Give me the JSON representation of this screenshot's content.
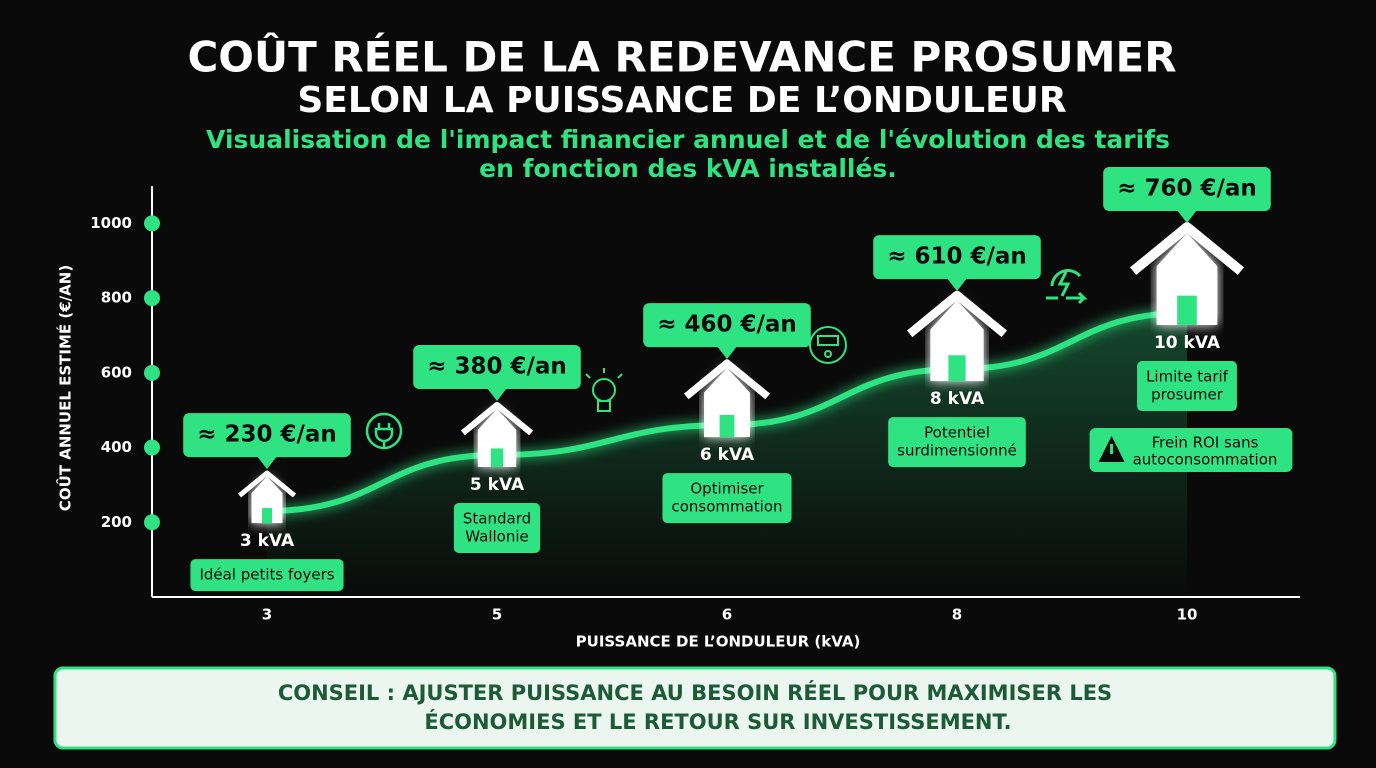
{
  "chart_data": {
    "type": "line",
    "title_lines": [
      "COÛT RÉEL DE LA REDEVANCE PROSUMER",
      "SELON LA PUISSANCE DE L’ONDULEUR"
    ],
    "subtitle_lines": [
      "Visualisation de l'impact  financier annuel et de l'évolution des tarifs",
      "en fonction des kVA installés."
    ],
    "y_label": "COÛT ANNUEL ESTIMÉ (€/AN)",
    "x_label": "PUISSANCE DE L’ONDULEUR (kVA)",
    "categories": [
      "3",
      "5",
      "6",
      "8",
      "10"
    ],
    "values": [
      230,
      380,
      460,
      610,
      760
    ],
    "value_labels": [
      "≈ 230 €/an",
      "≈ 380 €/an",
      "≈ 460 €/an",
      "≈ 610 €/an",
      "≈ 760 €/an"
    ],
    "point_labels": [
      "3 kVA",
      "5 kVA",
      "6 kVA",
      "8 kVA",
      "10 kVA"
    ],
    "notes": [
      [
        "Idéal petits foyers"
      ],
      [
        "Standard",
        "Wallonie"
      ],
      [
        "Optimiser",
        "consommation"
      ],
      [
        "Potentiel",
        "surdimensionné"
      ],
      [
        "Limite tarif",
        "prosumer"
      ]
    ],
    "warning": [
      "Frein ROI sans",
      "autoconsommation"
    ],
    "ylim": [
      0,
      1100
    ],
    "yticks": [
      200,
      400,
      600,
      800,
      1000
    ],
    "color": "#2fe382",
    "footer_lines": [
      "CONSEIL : AJUSTER PUISSANCE AU BESOIN RÉEL POUR MAXIMISER LES",
      "ÉCONOMIES ET LE RETOUR SUR INVESTISSEMENT."
    ]
  }
}
